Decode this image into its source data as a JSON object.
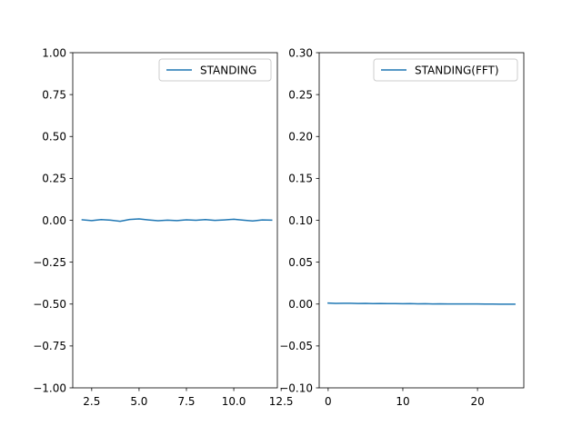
{
  "chart_data": [
    {
      "type": "line",
      "title": "",
      "xlabel": "",
      "ylabel": "",
      "xlim": [
        1.5,
        12.3
      ],
      "ylim": [
        -1.0,
        1.0
      ],
      "xticks": [
        2.5,
        5.0,
        7.5,
        10.0,
        12.5
      ],
      "xtick_labels": [
        "2.5",
        "5.0",
        "7.5",
        "10.0",
        "12.5"
      ],
      "yticks": [
        -1.0,
        -0.75,
        -0.5,
        -0.25,
        0.0,
        0.25,
        0.5,
        0.75,
        1.0
      ],
      "ytick_labels": [
        "−1.00",
        "−0.75",
        "−0.50",
        "−0.25",
        "0.00",
        "0.25",
        "0.50",
        "0.75",
        "1.00"
      ],
      "legend_position": "top-right",
      "grid": false,
      "series": [
        {
          "name": "STANDING",
          "color": "#1f77b4",
          "x": [
            2.0,
            2.5,
            3.0,
            3.5,
            4.0,
            4.5,
            5.0,
            5.5,
            6.0,
            6.5,
            7.0,
            7.5,
            8.0,
            8.5,
            9.0,
            9.5,
            10.0,
            10.5,
            11.0,
            11.5,
            12.0
          ],
          "y": [
            0.003,
            -0.002,
            0.004,
            0.001,
            -0.006,
            0.005,
            0.008,
            0.002,
            -0.003,
            0.001,
            -0.002,
            0.003,
            0.0,
            0.004,
            -0.001,
            0.002,
            0.006,
            0.001,
            -0.004,
            0.002,
            0.001
          ]
        }
      ]
    },
    {
      "type": "line",
      "title": "",
      "xlabel": "",
      "ylabel": "",
      "xlim": [
        -1.2,
        26.2
      ],
      "ylim": [
        -0.1,
        0.3
      ],
      "xticks": [
        0,
        10,
        20
      ],
      "xtick_labels": [
        "0",
        "10",
        "20"
      ],
      "yticks": [
        -0.1,
        -0.05,
        0.0,
        0.05,
        0.1,
        0.15,
        0.2,
        0.25,
        0.3
      ],
      "ytick_labels": [
        "−0.10",
        "−0.05",
        "0.00",
        "0.05",
        "0.10",
        "0.15",
        "0.20",
        "0.25",
        "0.30"
      ],
      "legend_position": "top-right",
      "grid": false,
      "series": [
        {
          "name": "STANDING(FFT)",
          "color": "#1f77b4",
          "x": [
            0,
            1,
            2,
            3,
            4,
            5,
            6,
            7,
            8,
            9,
            10,
            11,
            12,
            13,
            14,
            15,
            16,
            17,
            18,
            19,
            20,
            21,
            22,
            23,
            24,
            25
          ],
          "y": [
            0.0012,
            0.0008,
            0.001,
            0.0009,
            0.0007,
            0.0008,
            0.0006,
            0.0007,
            0.0005,
            0.0006,
            0.0004,
            0.0005,
            0.0003,
            0.0004,
            0.0002,
            0.0003,
            0.0002,
            0.0002,
            0.0001,
            0.0001,
            0.0001,
            0.0,
            0.0,
            -0.0001,
            -0.0001,
            -0.0001
          ]
        }
      ]
    }
  ]
}
